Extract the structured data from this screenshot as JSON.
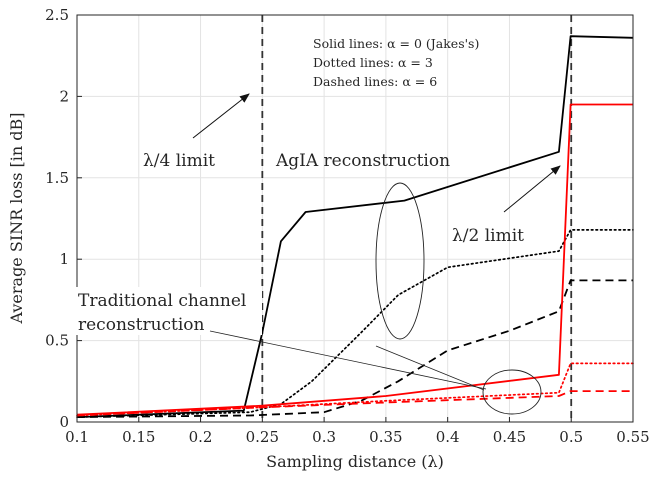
{
  "chart_data": {
    "type": "line",
    "xlabel": "Sampling distance (λ)",
    "ylabel": "Average SINR loss [in dB]",
    "xlim": [
      0.1,
      0.55
    ],
    "ylim": [
      0,
      2.5
    ],
    "xticks": [
      "0.1",
      "0.15",
      "0.2",
      "0.25",
      "0.3",
      "0.35",
      "0.4",
      "0.45",
      "0.5",
      "0.55"
    ],
    "yticks": [
      "0",
      "0.5",
      "1",
      "1.5",
      "2",
      "2.5"
    ],
    "grid": true,
    "series": [
      {
        "group": "AgIA reconstruction",
        "alpha": 0,
        "style": "solid",
        "color": "#000000",
        "x": [
          0.1,
          0.235,
          0.25,
          0.265,
          0.285,
          0.365,
          0.49,
          0.4995,
          0.55
        ],
        "y": [
          0.03,
          0.07,
          0.55,
          1.11,
          1.29,
          1.36,
          1.66,
          2.37,
          2.36
        ]
      },
      {
        "group": "AgIA reconstruction",
        "alpha": 3,
        "style": "dotted",
        "color": "#000000",
        "x": [
          0.1,
          0.24,
          0.265,
          0.29,
          0.33,
          0.36,
          0.4,
          0.49,
          0.4995,
          0.55
        ],
        "y": [
          0.03,
          0.06,
          0.11,
          0.25,
          0.55,
          0.78,
          0.95,
          1.05,
          1.18,
          1.18
        ]
      },
      {
        "group": "AgIA reconstruction",
        "alpha": 6,
        "style": "dashed",
        "color": "#000000",
        "x": [
          0.1,
          0.24,
          0.3,
          0.33,
          0.36,
          0.4,
          0.45,
          0.49,
          0.4995,
          0.55
        ],
        "y": [
          0.03,
          0.04,
          0.06,
          0.13,
          0.25,
          0.44,
          0.56,
          0.68,
          0.87,
          0.87
        ]
      },
      {
        "group": "Traditional channel reconstruction",
        "alpha": 0,
        "style": "solid",
        "color": "#ff0000",
        "x": [
          0.1,
          0.25,
          0.35,
          0.49,
          0.4995,
          0.55
        ],
        "y": [
          0.045,
          0.1,
          0.16,
          0.29,
          1.95,
          1.95
        ]
      },
      {
        "group": "Traditional channel reconstruction",
        "alpha": 3,
        "style": "dotted",
        "color": "#ff0000",
        "x": [
          0.1,
          0.25,
          0.35,
          0.49,
          0.4995,
          0.55
        ],
        "y": [
          0.04,
          0.09,
          0.13,
          0.18,
          0.36,
          0.36
        ]
      },
      {
        "group": "Traditional channel reconstruction",
        "alpha": 6,
        "style": "dashed",
        "color": "#ff0000",
        "x": [
          0.1,
          0.25,
          0.35,
          0.49,
          0.4995,
          0.55
        ],
        "y": [
          0.04,
          0.09,
          0.12,
          0.16,
          0.19,
          0.19
        ]
      }
    ],
    "vlines": [
      {
        "x": 0.25,
        "style": "dashed",
        "color": "#333333"
      },
      {
        "x": 0.5,
        "style": "dashed",
        "color": "#333333"
      }
    ],
    "legend_notes": [
      "Solid lines: α = 0 (Jakes's)",
      "Dotted lines: α = 3",
      "Dashed lines: α = 6"
    ],
    "annotations": {
      "quarter_limit": "λ/4 limit",
      "half_limit": "λ/2 limit",
      "agia": "AgIA reconstruction",
      "traditional_line1": "Traditional channel",
      "traditional_line2": "reconstruction"
    }
  }
}
